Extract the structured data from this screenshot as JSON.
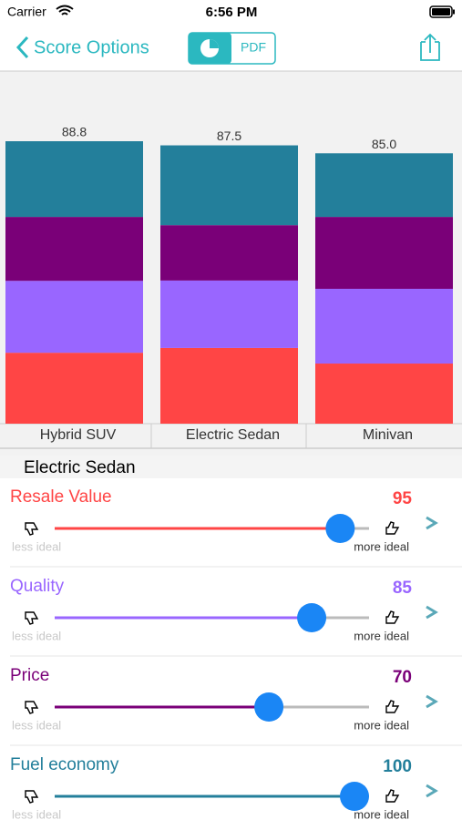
{
  "status_bar": {
    "carrier": "Carrier",
    "time": "6:56 PM"
  },
  "nav": {
    "back": "Score Options",
    "pdf": "PDF"
  },
  "chart_data": {
    "type": "stacked-bar",
    "categories": [
      "Hybrid SUV",
      "Electric Sedan",
      "Minivan"
    ],
    "totals": [
      88.8,
      87.5,
      85.0
    ],
    "total_labels": [
      "88.8",
      "87.5",
      "85.0"
    ],
    "series": [
      {
        "name": "Resale Value",
        "color": "#ff4545",
        "values": [
          22.3,
          23.8,
          18.9
        ]
      },
      {
        "name": "Quality",
        "color": "#9966ff",
        "values": [
          22.6,
          21.2,
          23.5
        ]
      },
      {
        "name": "Price",
        "color": "#7a0078",
        "values": [
          20.1,
          17.4,
          22.6
        ]
      },
      {
        "name": "Fuel economy",
        "color": "#237f9b",
        "values": [
          23.8,
          25.1,
          20.0
        ]
      }
    ]
  },
  "detail": {
    "title": "Electric Sedan",
    "less": "less ideal",
    "more": "more ideal",
    "sliders": [
      95,
      85,
      70,
      100
    ]
  }
}
